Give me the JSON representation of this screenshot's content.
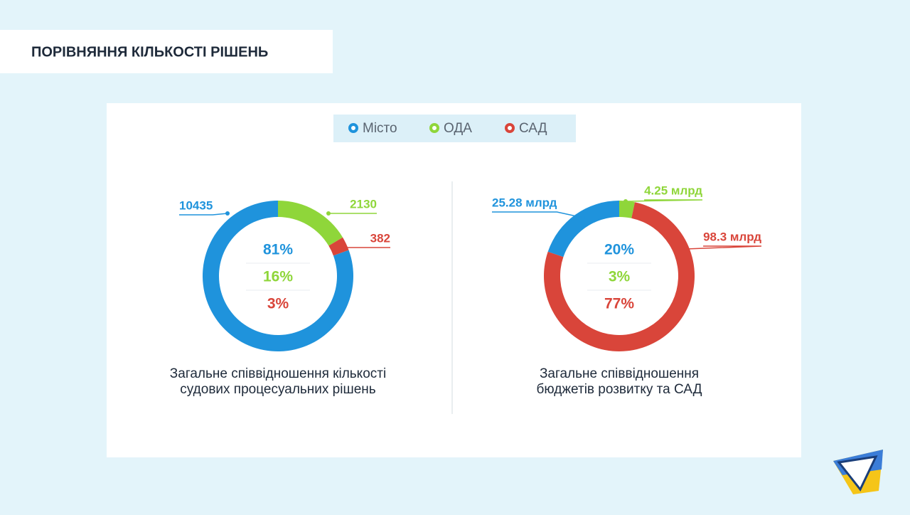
{
  "title": "ПОРІВНЯННЯ КІЛЬКОСТІ РІШЕНЬ",
  "chart_data": [
    {
      "type": "pie",
      "categories": [
        "Місто",
        "ОДА",
        "САД"
      ],
      "colors": [
        "#1f93dc",
        "#8fd63a",
        "#d9453a"
      ],
      "values": [
        10435,
        2130,
        382
      ],
      "percent_labels": [
        "81%",
        "16%",
        "3%"
      ],
      "caption": [
        "Загальне співвідношення кількості",
        "судових процесуальних рішень"
      ]
    },
    {
      "type": "pie",
      "categories": [
        "Місто",
        "ОДА",
        "САД"
      ],
      "colors": [
        "#1f93dc",
        "#8fd63a",
        "#d9453a"
      ],
      "values": [
        25.28,
        4.25,
        98.3
      ],
      "value_labels": [
        "25.28 млрд",
        "4.25 млрд",
        "98.3 млрд"
      ],
      "percent_labels": [
        "20%",
        "3%",
        "77%"
      ],
      "caption": [
        "Загальне співвідношення",
        "бюджетів розвитку та САД"
      ]
    }
  ]
}
